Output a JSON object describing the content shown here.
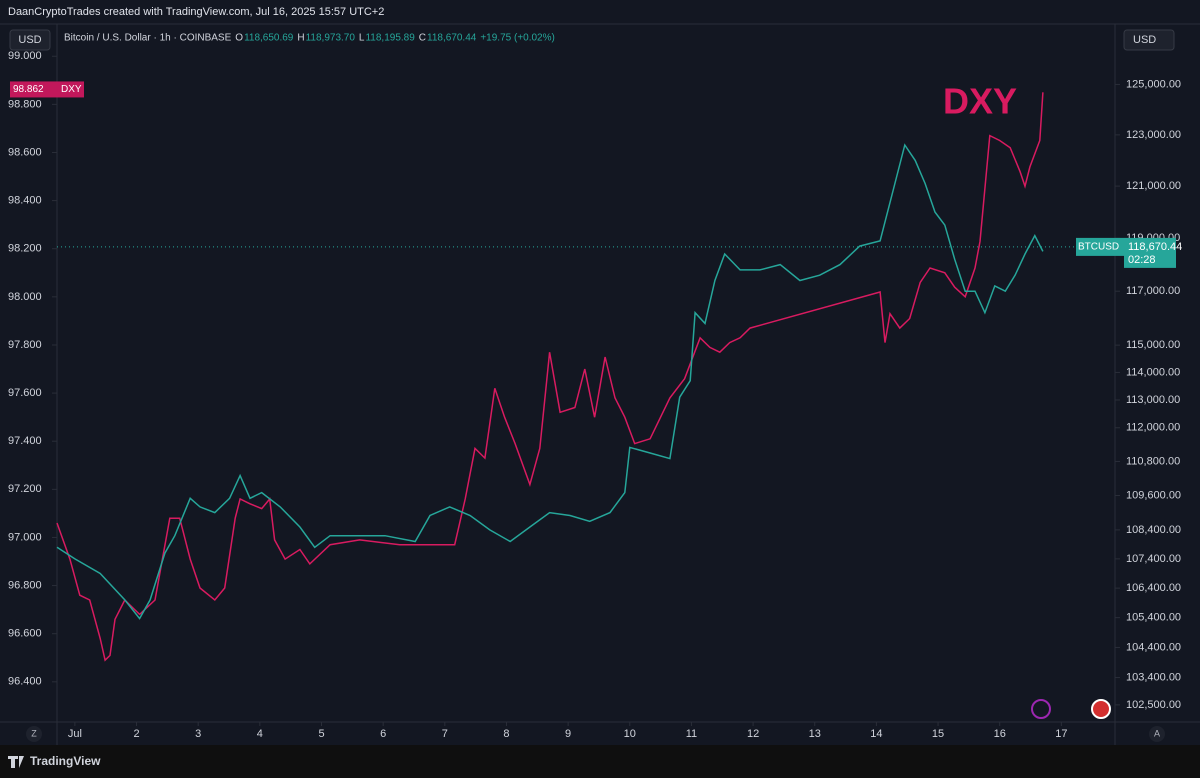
{
  "header": {
    "credit": "DaanCryptoTrades created with TradingView.com, Jul 16, 2025 15:57 UTC+2",
    "symbol": "Bitcoin / U.S. Dollar · 1h · COINBASE",
    "ohlc": [
      {
        "key": "O",
        "value": "118,650.69"
      },
      {
        "key": "H",
        "value": "118,973.70"
      },
      {
        "key": "L",
        "value": "118,195.89"
      },
      {
        "key": "C",
        "value": "118,670.44"
      }
    ],
    "change": "+19.75 (+0.02%)",
    "currency_left": "USD",
    "currency_right": "USD"
  },
  "footer": {
    "brand": "TradingView",
    "left_button": "Z",
    "right_button": "A"
  },
  "chart_data": {
    "type": "line",
    "annotation": "DXY",
    "xlim": [
      0.71,
      17.87
    ],
    "xticks": [
      {
        "value": 1,
        "label": "Jul"
      },
      2,
      3,
      4,
      5,
      6,
      7,
      8,
      9,
      10,
      11,
      12,
      13,
      14,
      15,
      16,
      17
    ],
    "ylim": [
      96.233,
      99.134
    ],
    "yticks": [
      {
        "value": 96.4,
        "label": "96.400"
      },
      {
        "value": 96.6,
        "label": "96.600"
      },
      {
        "value": 96.8,
        "label": "96.800"
      },
      {
        "value": 97,
        "label": "97.000"
      },
      {
        "value": 97.2,
        "label": "97.200"
      },
      {
        "value": 97.4,
        "label": "97.400"
      },
      {
        "value": 97.6,
        "label": "97.600"
      },
      {
        "value": 97.8,
        "label": "97.800"
      },
      {
        "value": 98,
        "label": "98.000"
      },
      {
        "value": 98.2,
        "label": "98.200"
      },
      {
        "value": 98.4,
        "label": "98.400"
      },
      {
        "value": 98.6,
        "label": "98.600"
      },
      {
        "value": 98.8,
        "label": "98.800"
      },
      {
        "value": 99,
        "label": "99.000"
      }
    ],
    "y2lim": [
      101940,
      127440
    ],
    "y2log": true,
    "y2ticks": [
      {
        "value": 102500,
        "label": "102,500.00"
      },
      {
        "value": 103400,
        "label": "103,400.00"
      },
      {
        "value": 104400,
        "label": "104,400.00"
      },
      {
        "value": 105400,
        "label": "105,400.00"
      },
      {
        "value": 106400,
        "label": "106,400.00"
      },
      {
        "value": 107400,
        "label": "107,400.00"
      },
      {
        "value": 108400,
        "label": "108,400.00"
      },
      {
        "value": 109600,
        "label": "109,600.00"
      },
      {
        "value": 110800,
        "label": "110,800.00"
      },
      {
        "value": 112000,
        "label": "112,000.00"
      },
      {
        "value": 113000,
        "label": "113,000.00"
      },
      {
        "value": 114000,
        "label": "114,000.00"
      },
      {
        "value": 115000,
        "label": "115,000.00"
      },
      {
        "value": 117000,
        "label": "117,000.00"
      },
      {
        "value": 119000,
        "label": "119,000.00"
      },
      {
        "value": 121000,
        "label": "121,000.00"
      },
      {
        "value": 123000,
        "label": "123,000.00"
      },
      {
        "value": 125000,
        "label": "125,000.00"
      }
    ],
    "series": [
      {
        "name": "DXY",
        "color": "#d81b60",
        "axis": "y",
        "x": [
          0.71,
          0.92,
          1.08,
          1.24,
          1.41,
          1.49,
          1.57,
          1.65,
          1.81,
          2.05,
          2.3,
          2.54,
          2.7,
          2.87,
          3.03,
          3.27,
          3.43,
          3.6,
          3.68,
          3.84,
          4.03,
          4.16,
          4.24,
          4.41,
          4.65,
          4.81,
          5.14,
          5.62,
          6.27,
          7.16,
          7.33,
          7.49,
          7.65,
          7.81,
          7.97,
          8.14,
          8.38,
          8.54,
          8.7,
          8.87,
          9.11,
          9.27,
          9.43,
          9.6,
          9.76,
          9.92,
          10.08,
          10.33,
          10.65,
          10.89,
          11.14,
          11.3,
          11.46,
          11.62,
          11.79,
          11.95,
          14.06,
          14.14,
          14.22,
          14.38,
          14.54,
          14.71,
          14.87,
          15.11,
          15.27,
          15.44,
          15.6,
          15.68,
          15.84,
          16,
          16.17,
          16.33,
          16.41,
          16.49,
          16.65,
          16.7
        ],
        "values": [
          97.06,
          96.91,
          96.76,
          96.74,
          96.58,
          96.49,
          96.51,
          96.66,
          96.74,
          96.68,
          96.74,
          97.08,
          97.08,
          96.91,
          96.79,
          96.74,
          96.79,
          97.08,
          97.16,
          97.14,
          97.12,
          97.16,
          96.99,
          96.91,
          96.95,
          96.89,
          96.97,
          96.99,
          96.97,
          96.97,
          97.16,
          97.37,
          97.33,
          97.62,
          97.5,
          97.39,
          97.22,
          97.37,
          97.77,
          97.52,
          97.54,
          97.7,
          97.5,
          97.75,
          97.58,
          97.5,
          97.39,
          97.41,
          97.58,
          97.66,
          97.83,
          97.79,
          97.77,
          97.81,
          97.83,
          97.87,
          98.02,
          97.81,
          97.93,
          97.87,
          97.91,
          98.06,
          98.12,
          98.1,
          98.04,
          98,
          98.12,
          98.23,
          98.67,
          98.65,
          98.62,
          98.52,
          98.46,
          98.54,
          98.65,
          98.85
        ]
      },
      {
        "name": "BTCUSD",
        "color": "#26a69a",
        "axis": "y2",
        "x": [
          0.71,
          1,
          1.41,
          1.81,
          2.05,
          2.22,
          2.46,
          2.62,
          2.87,
          3.03,
          3.27,
          3.51,
          3.68,
          3.84,
          4.03,
          4.33,
          4.65,
          4.89,
          5.14,
          5.62,
          6.03,
          6.52,
          6.76,
          7.08,
          7.41,
          7.73,
          8.06,
          8.38,
          8.7,
          9.03,
          9.35,
          9.68,
          9.92,
          10,
          10.33,
          10.65,
          10.81,
          10.98,
          11.06,
          11.22,
          11.38,
          11.54,
          11.79,
          12.11,
          12.44,
          12.76,
          13.08,
          13.41,
          13.73,
          14.06,
          14.3,
          14.46,
          14.63,
          14.79,
          14.95,
          15.11,
          15.27,
          15.44,
          15.6,
          15.76,
          15.92,
          16.09,
          16.25,
          16.41,
          16.57,
          16.7
        ],
        "values": [
          107800,
          107400,
          106900,
          106000,
          105370,
          106000,
          107600,
          108200,
          109500,
          109200,
          109000,
          109500,
          110300,
          109500,
          109700,
          109200,
          108500,
          107800,
          108200,
          108200,
          108200,
          108000,
          108900,
          109200,
          108900,
          108400,
          108000,
          108500,
          109000,
          108900,
          108700,
          109000,
          109700,
          111300,
          111100,
          110900,
          113100,
          113700,
          116200,
          115800,
          117400,
          118400,
          117800,
          117800,
          118000,
          117400,
          117600,
          118000,
          118700,
          118900,
          121100,
          122600,
          122000,
          121100,
          120000,
          119500,
          118200,
          117000,
          117000,
          116200,
          117200,
          117000,
          117600,
          118400,
          119100,
          118500
        ]
      }
    ],
    "price_tag": {
      "name": "BTCUSD",
      "value": 118670.44,
      "label": "118,670.44",
      "countdown": "02:28"
    },
    "dxy_tag": {
      "name": "DXY",
      "value": 98.862,
      "label": "98.862"
    }
  }
}
